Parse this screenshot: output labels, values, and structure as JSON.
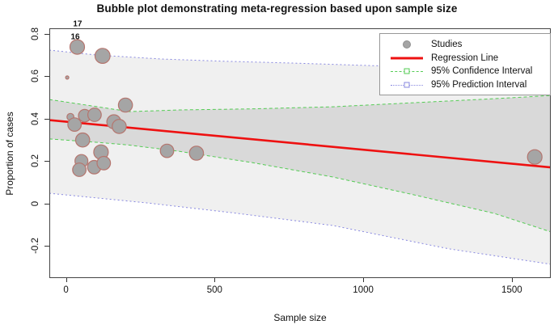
{
  "chart_data": {
    "type": "bubble",
    "title": "Bubble plot demonstrating meta-regression based upon sample size",
    "xlabel": "Sample size",
    "ylabel": "Proportion of cases",
    "xlim": [
      -56,
      1631
    ],
    "ylim": [
      -0.352,
      0.826
    ],
    "xticks": [
      0,
      500,
      1000,
      1500
    ],
    "yticks": [
      -0.2,
      0,
      0.2,
      0.4,
      0.6,
      0.8
    ],
    "grid": false,
    "legend": {
      "position": "top-right",
      "entries": [
        "Studies",
        "Regression Line",
        "95% Confidence Interval",
        "95% Prediction Interval"
      ]
    },
    "studies": [
      {
        "x": 38,
        "y": 0.738,
        "r": 9.0
      },
      {
        "x": 123,
        "y": 0.696,
        "r": 9.3
      },
      {
        "x": 4,
        "y": 0.594,
        "r": 2.0
      },
      {
        "x": 200,
        "y": 0.464,
        "r": 8.7
      },
      {
        "x": 15,
        "y": 0.408,
        "r": 4.3
      },
      {
        "x": 63,
        "y": 0.414,
        "r": 7.7
      },
      {
        "x": 96,
        "y": 0.418,
        "r": 8.3
      },
      {
        "x": 29,
        "y": 0.372,
        "r": 8.3
      },
      {
        "x": 161,
        "y": 0.385,
        "r": 8.7
      },
      {
        "x": 179,
        "y": 0.363,
        "r": 8.7
      },
      {
        "x": 56,
        "y": 0.299,
        "r": 8.7
      },
      {
        "x": 118,
        "y": 0.242,
        "r": 9.0
      },
      {
        "x": 52,
        "y": 0.2,
        "r": 8.0
      },
      {
        "x": 45,
        "y": 0.159,
        "r": 8.3
      },
      {
        "x": 95,
        "y": 0.171,
        "r": 8.3
      },
      {
        "x": 127,
        "y": 0.19,
        "r": 8.3
      },
      {
        "x": 340,
        "y": 0.248,
        "r": 8.3
      },
      {
        "x": 439,
        "y": 0.237,
        "r": 8.7
      },
      {
        "x": 1577,
        "y": 0.219,
        "r": 9.0
      }
    ],
    "annotations": [
      {
        "text": "16",
        "x": 31,
        "y": 0.784
      },
      {
        "text": "17",
        "x": 39,
        "y": 0.845
      }
    ],
    "regression_line": [
      [
        -56,
        0.393
      ],
      [
        1631,
        0.17
      ]
    ],
    "ci_upper": [
      [
        -56,
        0.49
      ],
      [
        107,
        0.456
      ],
      [
        213,
        0.433
      ],
      [
        379,
        0.441
      ],
      [
        624,
        0.446
      ],
      [
        897,
        0.456
      ],
      [
        1169,
        0.475
      ],
      [
        1441,
        0.494
      ],
      [
        1631,
        0.509
      ]
    ],
    "ci_lower": [
      [
        -56,
        0.304
      ],
      [
        107,
        0.288
      ],
      [
        213,
        0.275
      ],
      [
        379,
        0.246
      ],
      [
        624,
        0.193
      ],
      [
        897,
        0.125
      ],
      [
        1169,
        0.041
      ],
      [
        1441,
        -0.047
      ],
      [
        1631,
        -0.134
      ]
    ],
    "pi_upper": [
      [
        -56,
        0.723
      ],
      [
        104,
        0.7
      ],
      [
        322,
        0.681
      ],
      [
        526,
        0.671
      ],
      [
        760,
        0.662
      ],
      [
        1032,
        0.65
      ],
      [
        1288,
        0.643
      ],
      [
        1631,
        0.635
      ]
    ],
    "pi_lower": [
      [
        -56,
        0.048
      ],
      [
        270,
        0.003
      ],
      [
        567,
        -0.045
      ],
      [
        897,
        -0.104
      ],
      [
        1288,
        -0.214
      ],
      [
        1631,
        -0.287
      ]
    ],
    "colors": {
      "regression": "#ee1111",
      "ci_line": "#55cc55",
      "pi_line": "#8888e0",
      "ci_fill": "#d9d9d9",
      "pi_fill": "#f0f0f0",
      "bubble_fill": "#a5a5a5",
      "bubble_stroke": "#b5756e",
      "border": "#444444",
      "tick": "#333333"
    }
  }
}
